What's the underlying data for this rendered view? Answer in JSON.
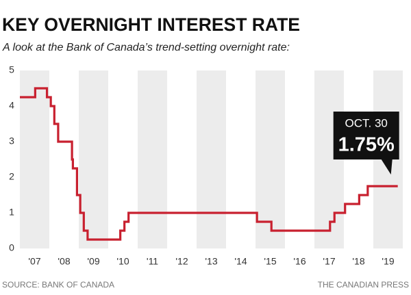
{
  "chart_data": {
    "type": "step",
    "title": "KEY OVERNIGHT INTEREST RATE",
    "subtitle": "A look at the Bank of Canada’s trend-setting overnight rate:",
    "source": "SOURCE: BANK OF CANADA",
    "credit": "THE CANADIAN PRESS",
    "annotation": "OCT. 30",
    "x": [
      2007.0,
      2007.52,
      2007.92,
      2008.05,
      2008.17,
      2008.3,
      2008.77,
      2008.8,
      2008.94,
      2009.05,
      2009.17,
      2009.3,
      2010.41,
      2010.55,
      2010.69,
      2015.05,
      2015.54,
      2017.53,
      2017.68,
      2018.04,
      2018.52,
      2018.81,
      2019.83
    ],
    "series": [
      {
        "name": "Overnight rate",
        "color": "#c8202f",
        "values": [
          4.25,
          4.5,
          4.25,
          4,
          3.5,
          3,
          2.5,
          2.25,
          1.5,
          1,
          0.5,
          0.25,
          0.5,
          0.75,
          1,
          0.75,
          0.5,
          0.75,
          1,
          1.25,
          1.5,
          1.75,
          1.75
        ],
        "value_labels": [
          null,
          null,
          null,
          null,
          null,
          null,
          null,
          null,
          null,
          null,
          null,
          null,
          null,
          null,
          null,
          null,
          null,
          null,
          null,
          null,
          null,
          null,
          "1.75%"
        ]
      }
    ],
    "xlim": [
      2007,
      2020
    ],
    "xticks": [
      {
        "value": 2007,
        "label": "'07"
      },
      {
        "value": 2008,
        "label": "'08"
      },
      {
        "value": 2009,
        "label": "'09"
      },
      {
        "value": 2010,
        "label": "'10"
      },
      {
        "value": 2011,
        "label": "'11"
      },
      {
        "value": 2012,
        "label": "'12"
      },
      {
        "value": 2013,
        "label": "'13"
      },
      {
        "value": 2014,
        "label": "'14"
      },
      {
        "value": 2015,
        "label": "'15"
      },
      {
        "value": 2016,
        "label": "'16"
      },
      {
        "value": 2017,
        "label": "'17"
      },
      {
        "value": 2018,
        "label": "'18"
      },
      {
        "value": 2019,
        "label": "'19"
      }
    ],
    "ylim": [
      0,
      5
    ],
    "yticks": [
      0,
      1,
      2,
      3,
      4,
      5
    ],
    "band_color": "#ececec"
  }
}
